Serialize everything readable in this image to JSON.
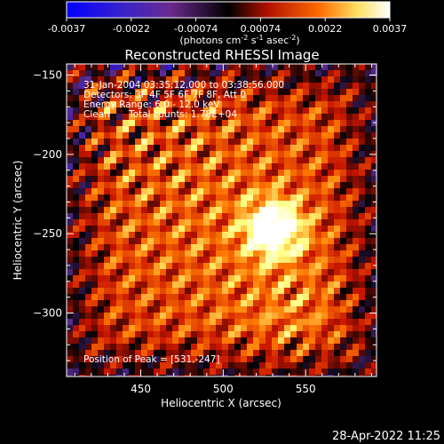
{
  "chart_data": {
    "type": "heatmap",
    "title": "Reconstructed RHESSI Image",
    "xlabel": "Heliocentric X (arcsec)",
    "ylabel": "Heliocentric Y (arcsec)",
    "xlim": [
      405,
      593
    ],
    "ylim": [
      -340,
      -143
    ],
    "xticks": [
      450,
      500,
      550
    ],
    "yticks": [
      -150,
      -200,
      -250,
      -300
    ],
    "annotations": [
      "31-Jan-2004 03:35:12.000 to 03:38:56.000",
      "Detectors: 3F 4F 5F 6F 7F 8F, Att 0",
      "Energy Range: 6.0 - 12.0 keV",
      "Clean",
      "Total counts: 1.78E+04",
      "Position of Peak = [531,-247]"
    ],
    "peak": {
      "x": 531,
      "y": -247
    },
    "colorbar": {
      "ticks": [
        "-0.0037",
        "-0.0022",
        "-0.00074",
        "0.00074",
        "0.0022",
        "0.0037"
      ],
      "unit_text": "(photons cm",
      "unit_sup1": "-2",
      "unit_mid": " s",
      "unit_sup2": "-1",
      "unit_end": " asec",
      "unit_sup3": "-2",
      "unit_close": ")",
      "range": [
        -0.0037,
        0.0037
      ],
      "colors": [
        "#0000ff",
        "#5a2d96",
        "#000000",
        "#c81400",
        "#ff7800",
        "#ffff80",
        "#ffffff"
      ]
    }
  },
  "footer": {
    "timestamp": "28-Apr-2022 11:25"
  }
}
